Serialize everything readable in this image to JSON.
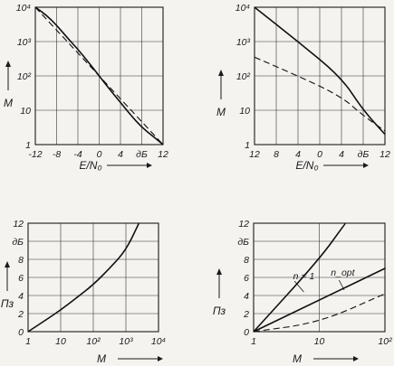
{
  "chart_data": [
    {
      "id": "A",
      "type": "line",
      "xlabel": "E/N₀",
      "ylabel": "M",
      "x_ticks": [
        "-12",
        "-8",
        "-4",
        "0",
        "4",
        "дБ",
        "12"
      ],
      "y_ticks": [
        "10⁴",
        "10³",
        "10²",
        "10",
        "1"
      ],
      "yscale": "log",
      "xlim": [
        -12,
        12
      ],
      "ylim": [
        1,
        10000
      ],
      "grid": true,
      "series": [
        {
          "style": "solid",
          "x": [
            -12,
            -10,
            -8,
            -6,
            -4,
            -2,
            0,
            2,
            4,
            6,
            8,
            10,
            12
          ],
          "y": [
            10000,
            6000,
            3000,
            1300,
            600,
            250,
            100,
            40,
            17,
            7,
            3.2,
            1.8,
            1.0
          ]
        },
        {
          "style": "dashed",
          "x": [
            -12,
            -6,
            0,
            6,
            12
          ],
          "y": [
            10000,
            1000,
            100,
            10,
            1.0
          ]
        }
      ]
    },
    {
      "id": "B",
      "type": "line",
      "xlabel": "E/N₀",
      "ylabel": "M",
      "x_ticks": [
        "12",
        "8",
        "4",
        "0",
        "4",
        "дБ",
        "12"
      ],
      "y_ticks": [
        "10⁴",
        "10³",
        "10²",
        "10",
        "1"
      ],
      "yscale": "log",
      "xlim": [
        -12,
        12
      ],
      "ylim": [
        1,
        10000
      ],
      "grid": true,
      "series": [
        {
          "style": "solid",
          "x": [
            -12,
            -4,
            4,
            8,
            12
          ],
          "y": [
            10000,
            1000,
            90,
            10,
            2.0
          ]
        },
        {
          "style": "dashed",
          "x": [
            -12,
            -4,
            4,
            8,
            12
          ],
          "y": [
            350,
            100,
            25,
            7,
            2.5
          ]
        }
      ]
    },
    {
      "id": "C",
      "type": "line",
      "xlabel": "M",
      "ylabel": "Пз",
      "x_ticks": [
        "1",
        "10",
        "10²",
        "10³",
        "10⁴"
      ],
      "y_ticks": [
        "12",
        "дБ",
        "8",
        "6",
        "4",
        "2",
        "0"
      ],
      "xscale": "log",
      "xlim": [
        1,
        10000
      ],
      "ylim": [
        0,
        12
      ],
      "grid": true,
      "series": [
        {
          "style": "solid",
          "x": [
            1,
            3.2,
            10,
            32,
            100,
            316,
            1000,
            2500
          ],
          "y": [
            0.0,
            1.2,
            2.4,
            3.8,
            5.2,
            7.0,
            9.0,
            12.0
          ]
        }
      ]
    },
    {
      "id": "D",
      "type": "line",
      "xlabel": "M",
      "ylabel": "Пз",
      "x_ticks": [
        "1",
        "10",
        "10²"
      ],
      "y_ticks": [
        "12",
        "дБ",
        "8",
        "6",
        "4",
        "2",
        "0"
      ],
      "xscale": "log",
      "xlim": [
        1,
        100
      ],
      "ylim": [
        0,
        12
      ],
      "grid": true,
      "annotations": [
        "n = 1",
        "n_opt"
      ],
      "series": [
        {
          "style": "solid",
          "label": "n = 1",
          "x": [
            1,
            10,
            25
          ],
          "y": [
            0,
            8.0,
            12.0
          ]
        },
        {
          "style": "solid",
          "label": "n_opt",
          "x": [
            1,
            10,
            100
          ],
          "y": [
            0,
            3.5,
            7.0
          ]
        },
        {
          "style": "dashed",
          "x": [
            1,
            10,
            100
          ],
          "y": [
            0,
            1.0,
            4.2
          ]
        }
      ]
    }
  ]
}
